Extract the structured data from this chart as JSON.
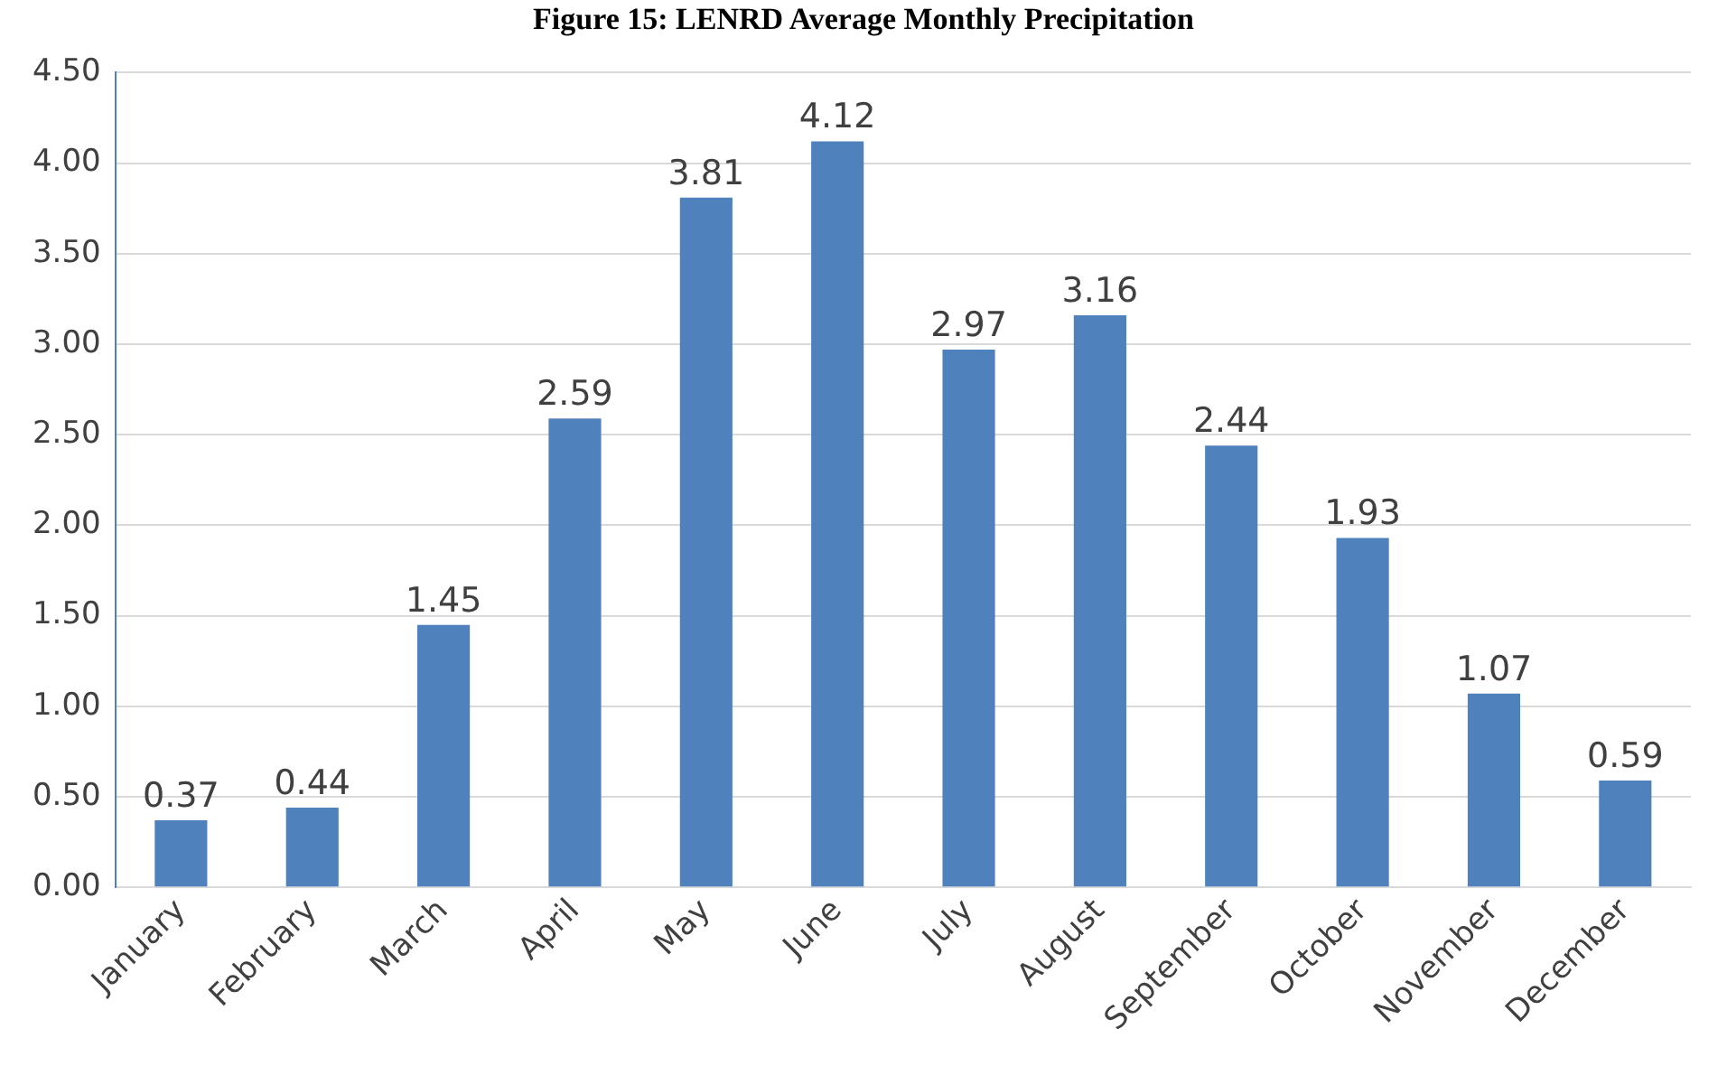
{
  "chart_data": {
    "type": "bar",
    "title": "Figure 15: LENRD Average Monthly Precipitation",
    "categories": [
      "January",
      "February",
      "March",
      "April",
      "May",
      "June",
      "July",
      "August",
      "September",
      "October",
      "November",
      "December"
    ],
    "values": [
      0.37,
      0.44,
      1.45,
      2.59,
      3.81,
      4.12,
      2.97,
      3.16,
      2.44,
      1.93,
      1.07,
      0.59
    ],
    "color": "#4f81bd",
    "ylim": [
      0,
      4.5
    ],
    "yticks": [
      {
        "value": 0,
        "label": "0.00"
      },
      {
        "value": 0.5,
        "label": "0.50"
      },
      {
        "value": 1,
        "label": "1.00"
      },
      {
        "value": 1.5,
        "label": "1.50"
      },
      {
        "value": 2,
        "label": "2.00"
      },
      {
        "value": 2.5,
        "label": "2.50"
      },
      {
        "value": 3,
        "label": "3.00"
      },
      {
        "value": 3.5,
        "label": "3.50"
      },
      {
        "value": 4,
        "label": "4.00"
      },
      {
        "value": 4.5,
        "label": "4.50"
      }
    ],
    "grid": "y",
    "data_labels": true
  }
}
